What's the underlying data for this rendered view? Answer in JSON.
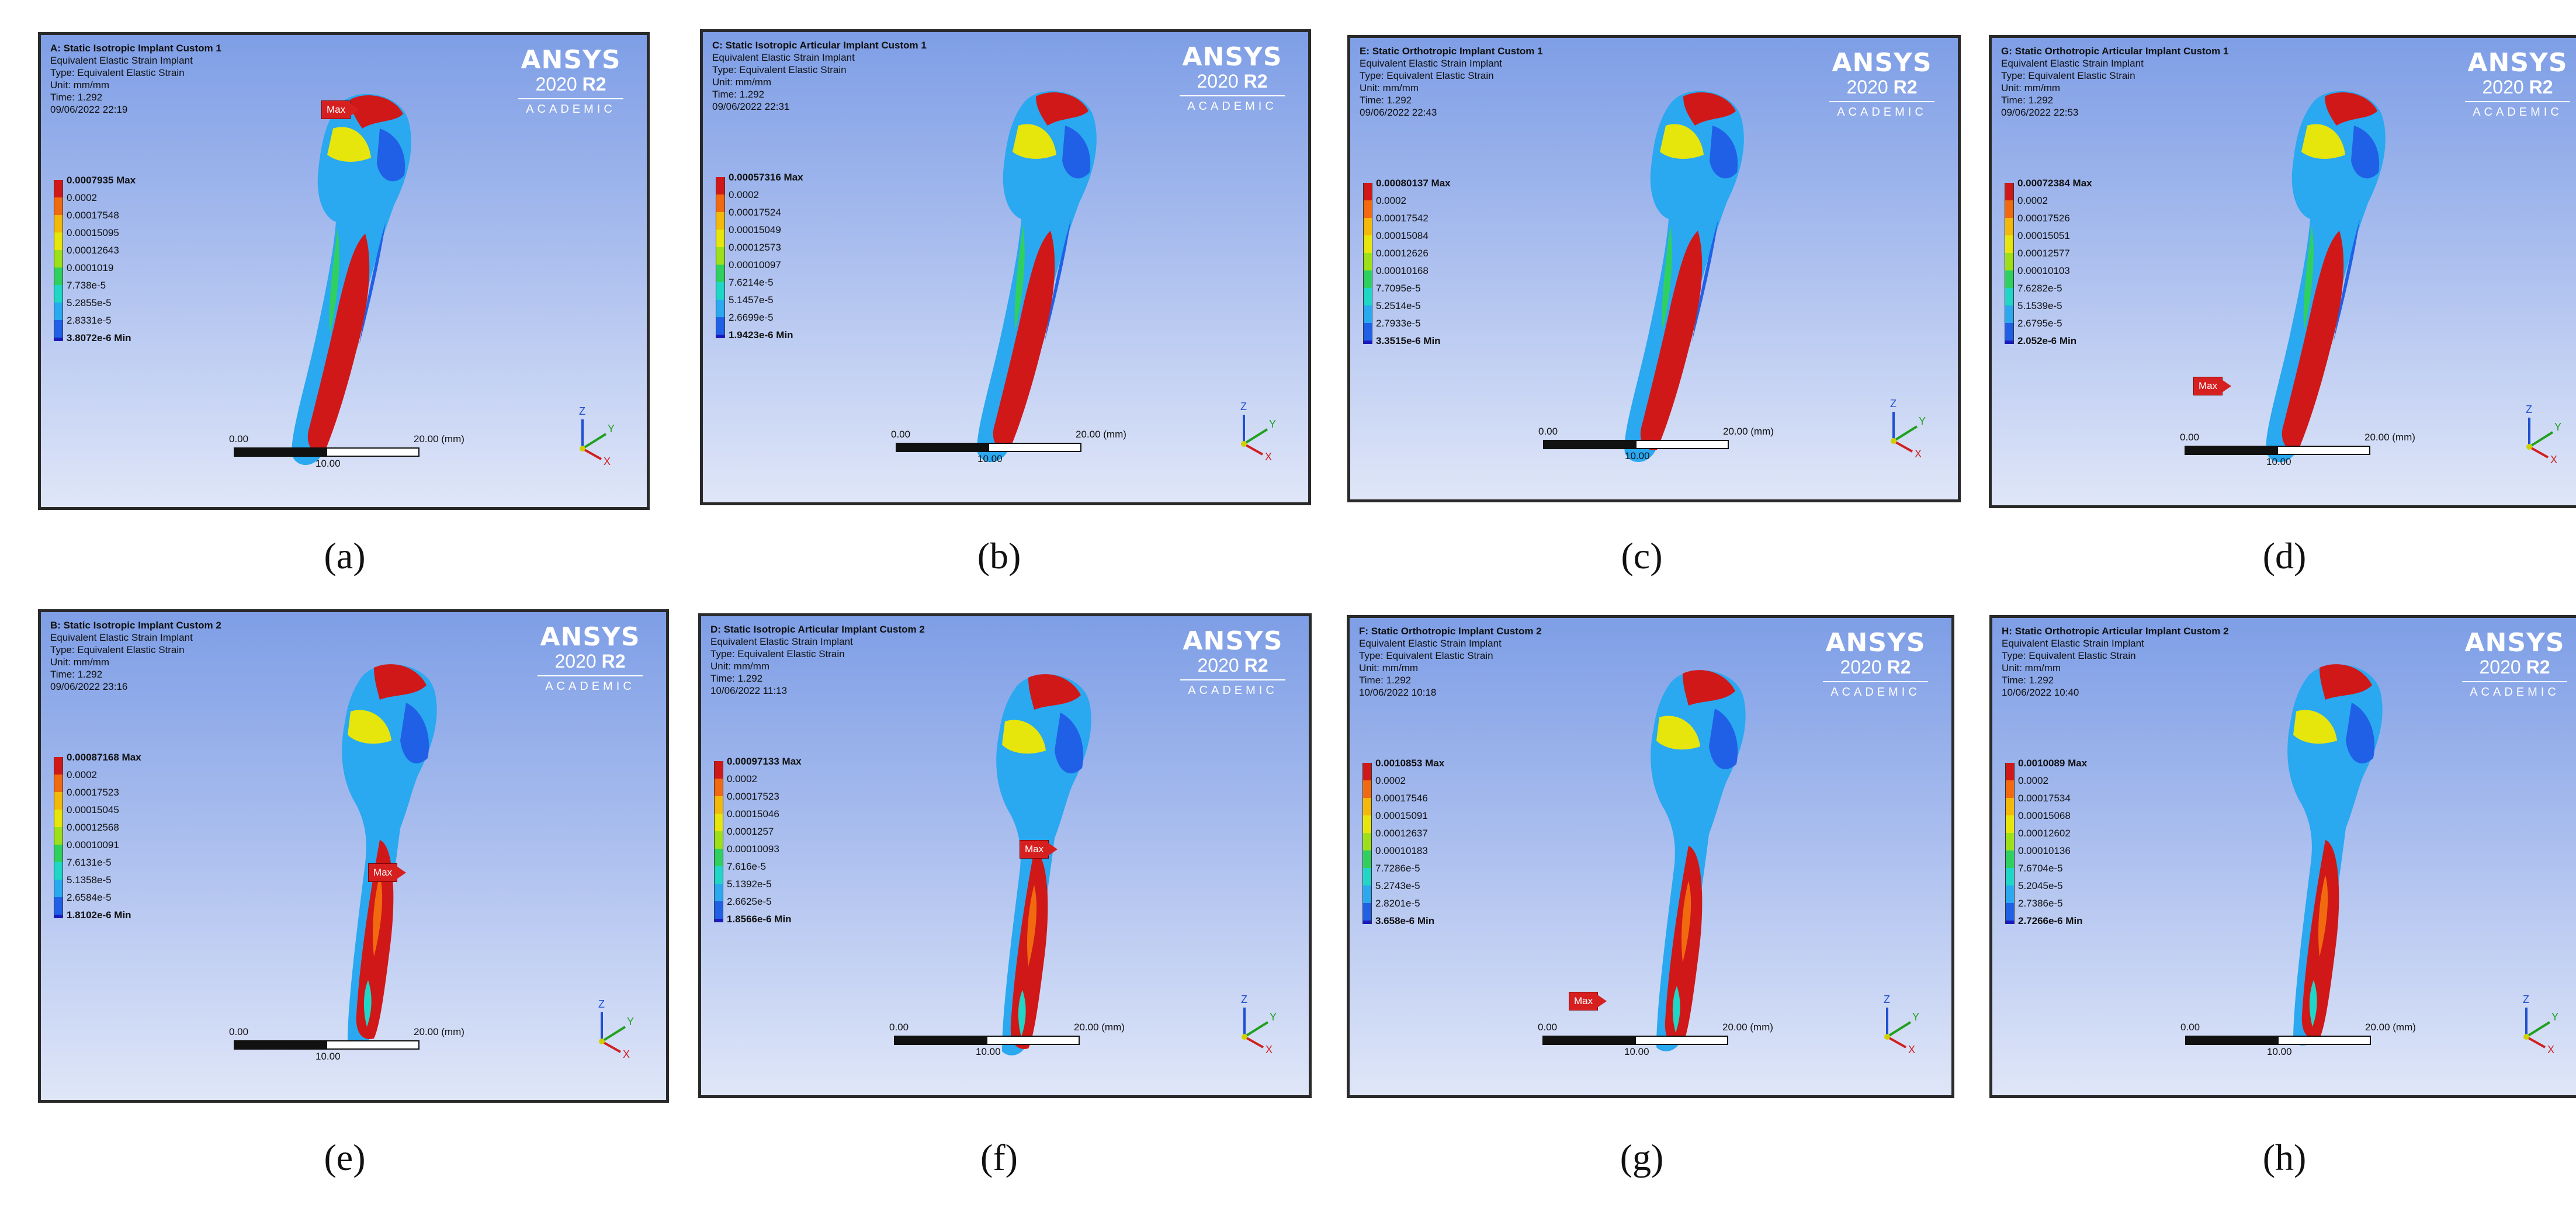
{
  "colors": [
    "#d01818",
    "#f26a10",
    "#f2b80a",
    "#e6e60c",
    "#9de01a",
    "#30d060",
    "#20d6c6",
    "#2aa8f0",
    "#2060e6"
  ],
  "min_color": "#1a1ac0",
  "scale": {
    "zero": "0.00",
    "twenty": "20.00 (mm)",
    "ten": "10.00"
  },
  "triad": {
    "x": "X",
    "y": "Y",
    "z": "Z"
  },
  "brand": {
    "name": "ANSYS",
    "version_a": "2020 ",
    "version_b": "R2",
    "edition": "ACADEMIC"
  },
  "max_marker": "Max",
  "panels": [
    {
      "id": "a",
      "title": "A: Static Isotropic Implant Custom 1",
      "l1": "Equivalent Elastic Strain Implant",
      "l2": "Type: Equivalent Elastic Strain",
      "l3": "Unit: mm/mm",
      "l4": "Time: 1.292",
      "l5": "09/06/2022 22:19",
      "legend": [
        "0.0007935 Max",
        "0.0002",
        "0.00017548",
        "0.00015095",
        "0.00012643",
        "0.0001019",
        "7.738e-5",
        "5.2855e-5",
        "2.8331e-5",
        "3.8072e-6 Min"
      ],
      "caption": "(a)"
    },
    {
      "id": "b",
      "title": "C: Static Isotropic Articular Implant Custom 1",
      "l1": "Equivalent Elastic Strain Implant",
      "l2": "Type: Equivalent Elastic Strain",
      "l3": "Unit: mm/mm",
      "l4": "Time: 1.292",
      "l5": "09/06/2022 22:31",
      "legend": [
        "0.00057316 Max",
        "0.0002",
        "0.00017524",
        "0.00015049",
        "0.00012573",
        "0.00010097",
        "7.6214e-5",
        "5.1457e-5",
        "2.6699e-5",
        "1.9423e-6 Min"
      ],
      "caption": "(b)"
    },
    {
      "id": "c",
      "title": "E: Static Orthotropic Implant Custom 1",
      "l1": "Equivalent Elastic Strain Implant",
      "l2": "Type: Equivalent Elastic Strain",
      "l3": "Unit: mm/mm",
      "l4": "Time: 1.292",
      "l5": "09/06/2022 22:43",
      "legend": [
        "0.00080137 Max",
        "0.0002",
        "0.00017542",
        "0.00015084",
        "0.00012626",
        "0.00010168",
        "7.7095e-5",
        "5.2514e-5",
        "2.7933e-5",
        "3.3515e-6 Min"
      ],
      "caption": "(c)"
    },
    {
      "id": "d",
      "title": "G: Static Orthotropic Articular Implant Custom 1",
      "l1": "Equivalent Elastic Strain Implant",
      "l2": "Type: Equivalent Elastic Strain",
      "l3": "Unit: mm/mm",
      "l4": "Time: 1.292",
      "l5": "09/06/2022 22:53",
      "legend": [
        "0.00072384 Max",
        "0.0002",
        "0.00017526",
        "0.00015051",
        "0.00012577",
        "0.00010103",
        "7.6282e-5",
        "5.1539e-5",
        "2.6795e-5",
        "2.052e-6 Min"
      ],
      "caption": "(d)"
    },
    {
      "id": "e",
      "title": "B: Static Isotropic Implant Custom 2",
      "l1": "Equivalent Elastic Strain Implant",
      "l2": "Type: Equivalent Elastic Strain",
      "l3": "Unit: mm/mm",
      "l4": "Time: 1.292",
      "l5": "09/06/2022 23:16",
      "legend": [
        "0.00087168 Max",
        "0.0002",
        "0.00017523",
        "0.00015045",
        "0.00012568",
        "0.00010091",
        "7.6131e-5",
        "5.1358e-5",
        "2.6584e-5",
        "1.8102e-6 Min"
      ],
      "caption": "(e)"
    },
    {
      "id": "f",
      "title": "D: Static Isotropic Articular Implant Custom 2",
      "l1": "Equivalent Elastic Strain Implant",
      "l2": "Type: Equivalent Elastic Strain",
      "l3": "Unit: mm/mm",
      "l4": "Time: 1.292",
      "l5": "10/06/2022 11:13",
      "legend": [
        "0.00097133 Max",
        "0.0002",
        "0.00017523",
        "0.00015046",
        "0.0001257",
        "0.00010093",
        "7.616e-5",
        "5.1392e-5",
        "2.6625e-5",
        "1.8566e-6 Min"
      ],
      "caption": "(f)"
    },
    {
      "id": "g",
      "title": "F: Static Orthotropic Implant Custom 2",
      "l1": "Equivalent Elastic Strain Implant",
      "l2": "Type: Equivalent Elastic Strain",
      "l3": "Unit: mm/mm",
      "l4": "Time: 1.292",
      "l5": "10/06/2022 10:18",
      "legend": [
        "0.0010853 Max",
        "0.0002",
        "0.00017546",
        "0.00015091",
        "0.00012637",
        "0.00010183",
        "7.7286e-5",
        "5.2743e-5",
        "2.8201e-5",
        "3.658e-6 Min"
      ],
      "caption": "(g)"
    },
    {
      "id": "h",
      "title": "H: Static Orthotropic Articular Implant Custom 2",
      "l1": "Equivalent Elastic Strain Implant",
      "l2": "Type: Equivalent Elastic Strain",
      "l3": "Unit: mm/mm",
      "l4": "Time: 1.292",
      "l5": "10/06/2022 10:40",
      "legend": [
        "0.0010089 Max",
        "0.0002",
        "0.00017534",
        "0.00015068",
        "0.00012602",
        "0.00010136",
        "7.6704e-5",
        "5.2045e-5",
        "2.7386e-5",
        "2.7266e-6 Min"
      ],
      "caption": "(h)"
    }
  ]
}
